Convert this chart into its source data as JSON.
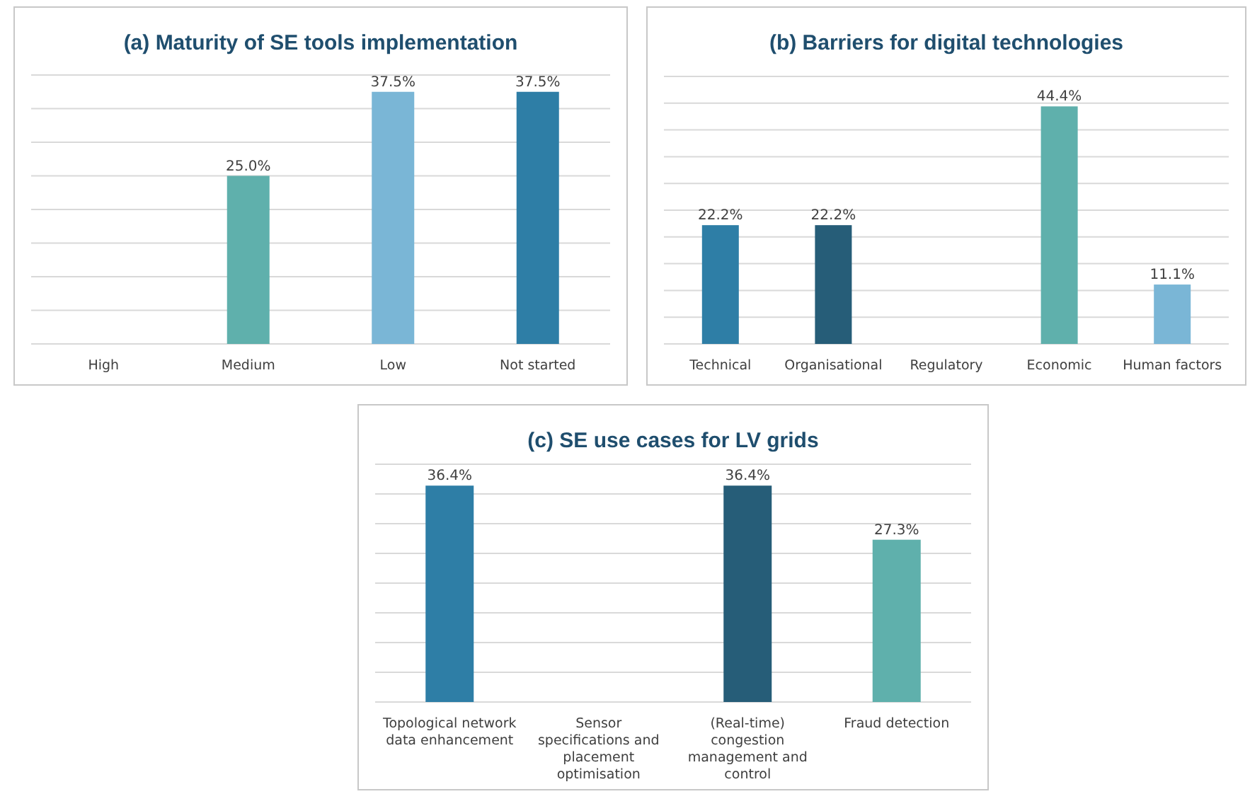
{
  "chart_data": [
    {
      "type": "bar",
      "title": "(a) Maturity of SE tools implementation",
      "categories": [
        "High",
        "Medium",
        "Low",
        "Not started"
      ],
      "values": [
        null,
        25.0,
        37.5,
        37.5
      ],
      "colors": [
        null,
        "#5fb0ac",
        "#7ab6d6",
        "#2e7ea6"
      ],
      "ylim": [
        0,
        40
      ],
      "yticks": [
        {
          "value": 0,
          "label": null
        },
        {
          "value": 5,
          "label": null
        },
        {
          "value": 10,
          "label": null
        },
        {
          "value": 15,
          "label": null
        },
        {
          "value": 20,
          "label": null
        },
        {
          "value": 25,
          "label": null
        },
        {
          "value": 30,
          "label": null
        },
        {
          "value": 35,
          "label": null
        },
        {
          "value": 40,
          "label": null
        }
      ],
      "grid": "y",
      "tick_labels": "x",
      "data_labels": true,
      "value_labels": [
        null,
        "25.0%",
        "37.5%",
        "37.5%"
      ]
    },
    {
      "type": "bar",
      "title": "(b) Barriers for digital technologies",
      "categories": [
        "Technical",
        "Organisational",
        "Regulatory",
        "Economic",
        "Human factors"
      ],
      "values": [
        22.2,
        22.2,
        null,
        44.4,
        11.1
      ],
      "colors": [
        "#2e7ea6",
        "#265d78",
        null,
        "#5fb0ac",
        "#7ab6d6"
      ],
      "ylim": [
        0,
        50
      ],
      "yticks": [
        {
          "value": 0,
          "label": null
        },
        {
          "value": 5,
          "label": null
        },
        {
          "value": 10,
          "label": null
        },
        {
          "value": 15,
          "label": null
        },
        {
          "value": 20,
          "label": null
        },
        {
          "value": 25,
          "label": null
        },
        {
          "value": 30,
          "label": null
        },
        {
          "value": 35,
          "label": null
        },
        {
          "value": 40,
          "label": null
        },
        {
          "value": 45,
          "label": null
        },
        {
          "value": 50,
          "label": null
        }
      ],
      "grid": "y",
      "tick_labels": "x",
      "data_labels": true,
      "value_labels": [
        "22.2%",
        "22.2%",
        null,
        "44.4%",
        "11.1%"
      ]
    },
    {
      "type": "bar",
      "title": "(c) SE use cases for LV grids",
      "categories": [
        "Topological network data enhancement",
        "Sensor specifications and placement optimisation",
        "(Real-time) congestion management and control",
        "Fraud detection"
      ],
      "values": [
        36.4,
        null,
        36.4,
        27.3
      ],
      "colors": [
        "#2e7ea6",
        null,
        "#265d78",
        "#5fb0ac"
      ],
      "ylim": [
        0,
        40
      ],
      "yticks": [
        {
          "value": 0,
          "label": null
        },
        {
          "value": 5,
          "label": null
        },
        {
          "value": 10,
          "label": null
        },
        {
          "value": 15,
          "label": null
        },
        {
          "value": 20,
          "label": null
        },
        {
          "value": 25,
          "label": null
        },
        {
          "value": 30,
          "label": null
        },
        {
          "value": 35,
          "label": null
        },
        {
          "value": 40,
          "label": null
        }
      ],
      "grid": "y",
      "tick_labels": "x",
      "data_labels": true,
      "value_labels": [
        "36.4%",
        null,
        "36.4%",
        "27.3%"
      ]
    }
  ]
}
